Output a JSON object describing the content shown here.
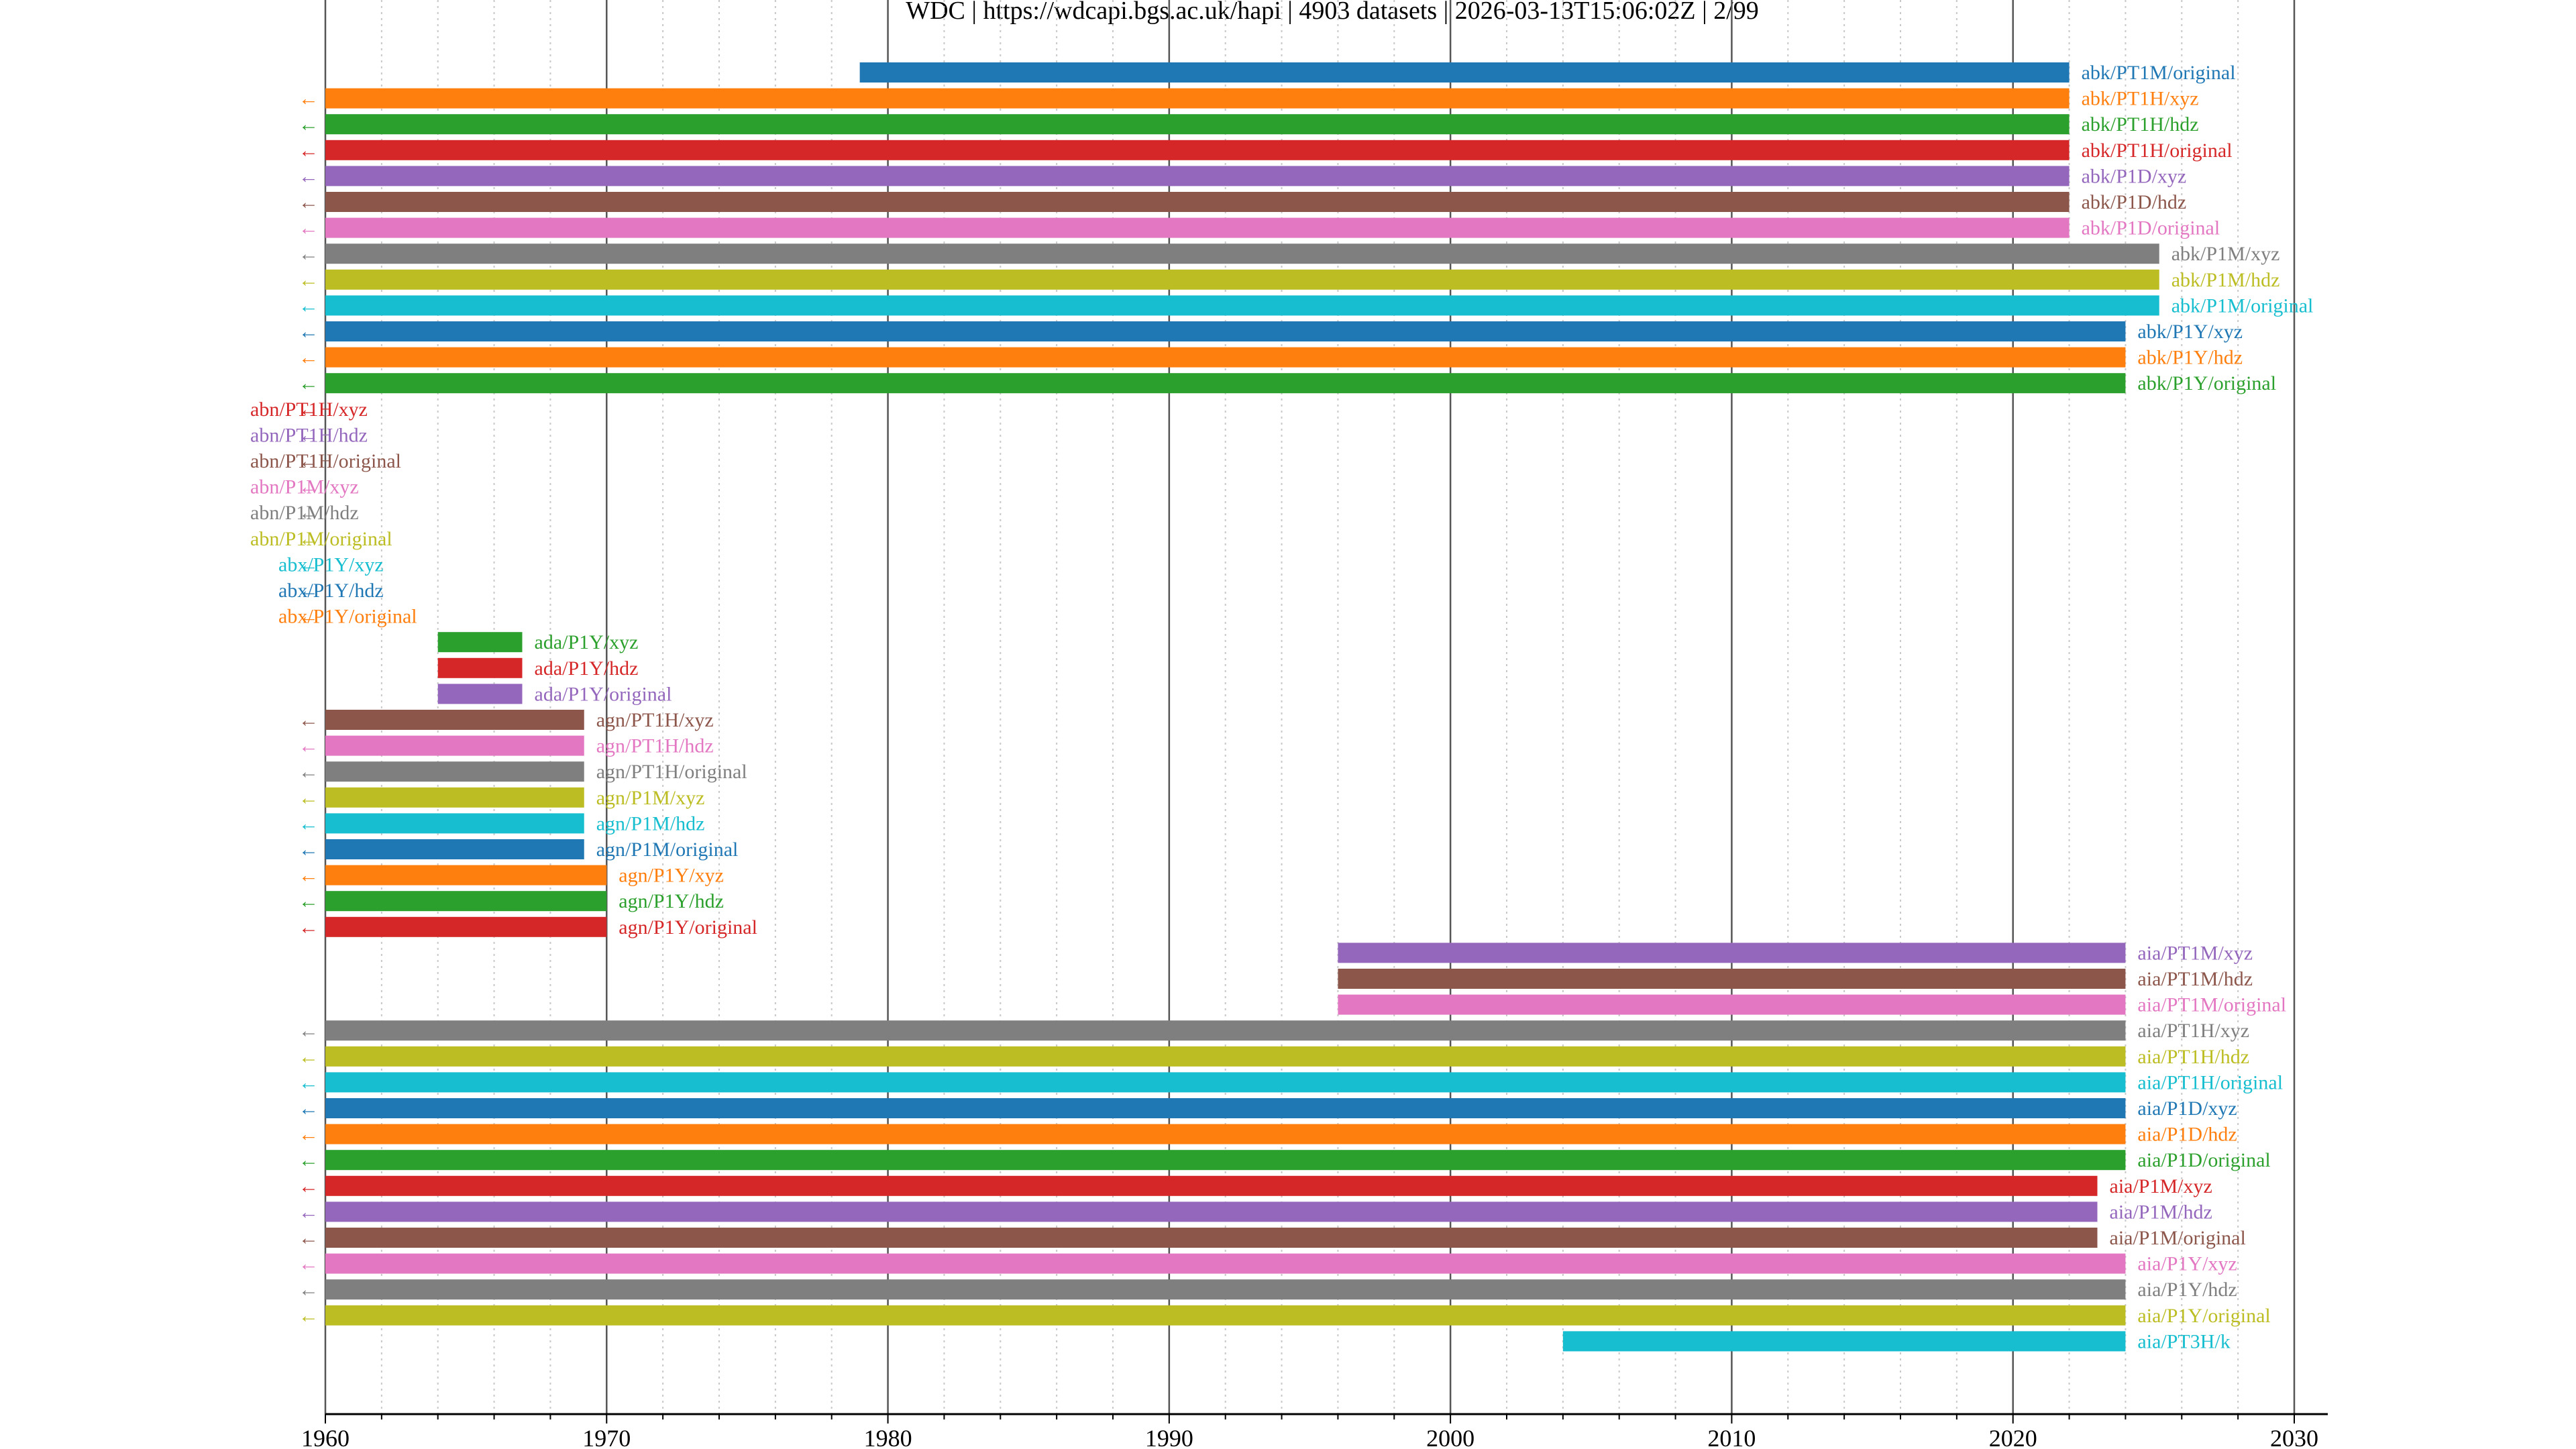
{
  "chart_data": {
    "type": "timeline",
    "title": "WDC | https://wdcapi.bgs.ac.uk/hapi | 4903 datasets | 2026-03-13T15:06:02Z | 2/99",
    "xlim": [
      1960,
      2030
    ],
    "x_ticks": [
      "1960",
      "1970",
      "1980",
      "1990",
      "2000",
      "2010",
      "2020",
      "2030"
    ],
    "truncated_start_marker": "←",
    "palette": [
      "#1f77b4",
      "#ff7f0e",
      "#2ca02c",
      "#d62728",
      "#9467bd",
      "#8c564b",
      "#e377c2",
      "#7f7f7f",
      "#bcbd22",
      "#17becf"
    ],
    "datasets": [
      {
        "label": "abk/PT1M/original",
        "start": 1979.0,
        "end": 2022.0,
        "truncated": false
      },
      {
        "label": "abk/PT1H/xyz",
        "start": 1960,
        "end": 2022.0,
        "truncated": true
      },
      {
        "label": "abk/PT1H/hdz",
        "start": 1960,
        "end": 2022.0,
        "truncated": true
      },
      {
        "label": "abk/PT1H/original",
        "start": 1960,
        "end": 2022.0,
        "truncated": true
      },
      {
        "label": "abk/P1D/xyz",
        "start": 1960,
        "end": 2022.0,
        "truncated": true
      },
      {
        "label": "abk/P1D/hdz",
        "start": 1960,
        "end": 2022.0,
        "truncated": true
      },
      {
        "label": "abk/P1D/original",
        "start": 1960,
        "end": 2022.0,
        "truncated": true
      },
      {
        "label": "abk/P1M/xyz",
        "start": 1960,
        "end": 2025.2,
        "truncated": true
      },
      {
        "label": "abk/P1M/hdz",
        "start": 1960,
        "end": 2025.2,
        "truncated": true
      },
      {
        "label": "abk/P1M/original",
        "start": 1960,
        "end": 2025.2,
        "truncated": true
      },
      {
        "label": "abk/P1Y/xyz",
        "start": 1960,
        "end": 2024.0,
        "truncated": true
      },
      {
        "label": "abk/P1Y/hdz",
        "start": 1960,
        "end": 2024.0,
        "truncated": true
      },
      {
        "label": "abk/P1Y/original",
        "start": 1960,
        "end": 2024.0,
        "truncated": true
      },
      {
        "label": "abn/PT1H/xyz",
        "start": 1960,
        "end": 1960,
        "truncated": true
      },
      {
        "label": "abn/PT1H/hdz",
        "start": 1960,
        "end": 1960,
        "truncated": true
      },
      {
        "label": "abn/PT1H/original",
        "start": 1960,
        "end": 1960,
        "truncated": true
      },
      {
        "label": "abn/P1M/xyz",
        "start": 1960,
        "end": 1960,
        "truncated": true
      },
      {
        "label": "abn/P1M/hdz",
        "start": 1960,
        "end": 1960,
        "truncated": true
      },
      {
        "label": "abn/P1M/original",
        "start": 1960,
        "end": 1960,
        "truncated": true
      },
      {
        "label": "abx/P1Y/xyz",
        "start": 1960,
        "end": 1960,
        "truncated": true
      },
      {
        "label": "abx/P1Y/hdz",
        "start": 1960,
        "end": 1960,
        "truncated": true
      },
      {
        "label": "abx/P1Y/original",
        "start": 1960,
        "end": 1960,
        "truncated": true
      },
      {
        "label": "ada/P1Y/xyz",
        "start": 1964.0,
        "end": 1967.0,
        "truncated": false
      },
      {
        "label": "ada/P1Y/hdz",
        "start": 1964.0,
        "end": 1967.0,
        "truncated": false
      },
      {
        "label": "ada/P1Y/original",
        "start": 1964.0,
        "end": 1967.0,
        "truncated": false
      },
      {
        "label": "agn/PT1H/xyz",
        "start": 1960,
        "end": 1969.2,
        "truncated": true
      },
      {
        "label": "agn/PT1H/hdz",
        "start": 1960,
        "end": 1969.2,
        "truncated": true
      },
      {
        "label": "agn/PT1H/original",
        "start": 1960,
        "end": 1969.2,
        "truncated": true
      },
      {
        "label": "agn/P1M/xyz",
        "start": 1960,
        "end": 1969.2,
        "truncated": true
      },
      {
        "label": "agn/P1M/hdz",
        "start": 1960,
        "end": 1969.2,
        "truncated": true
      },
      {
        "label": "agn/P1M/original",
        "start": 1960,
        "end": 1969.2,
        "truncated": true
      },
      {
        "label": "agn/P1Y/xyz",
        "start": 1960,
        "end": 1970.0,
        "truncated": true
      },
      {
        "label": "agn/P1Y/hdz",
        "start": 1960,
        "end": 1970.0,
        "truncated": true
      },
      {
        "label": "agn/P1Y/original",
        "start": 1960,
        "end": 1970.0,
        "truncated": true
      },
      {
        "label": "aia/PT1M/xyz",
        "start": 1996.0,
        "end": 2024.0,
        "truncated": false
      },
      {
        "label": "aia/PT1M/hdz",
        "start": 1996.0,
        "end": 2024.0,
        "truncated": false
      },
      {
        "label": "aia/PT1M/original",
        "start": 1996.0,
        "end": 2024.0,
        "truncated": false
      },
      {
        "label": "aia/PT1H/xyz",
        "start": 1960,
        "end": 2024.0,
        "truncated": true
      },
      {
        "label": "aia/PT1H/hdz",
        "start": 1960,
        "end": 2024.0,
        "truncated": true
      },
      {
        "label": "aia/PT1H/original",
        "start": 1960,
        "end": 2024.0,
        "truncated": true
      },
      {
        "label": "aia/P1D/xyz",
        "start": 1960,
        "end": 2024.0,
        "truncated": true
      },
      {
        "label": "aia/P1D/hdz",
        "start": 1960,
        "end": 2024.0,
        "truncated": true
      },
      {
        "label": "aia/P1D/original",
        "start": 1960,
        "end": 2024.0,
        "truncated": true
      },
      {
        "label": "aia/P1M/xyz",
        "start": 1960,
        "end": 2023.0,
        "truncated": true
      },
      {
        "label": "aia/P1M/hdz",
        "start": 1960,
        "end": 2023.0,
        "truncated": true
      },
      {
        "label": "aia/P1M/original",
        "start": 1960,
        "end": 2023.0,
        "truncated": true
      },
      {
        "label": "aia/P1Y/xyz",
        "start": 1960,
        "end": 2024.0,
        "truncated": true
      },
      {
        "label": "aia/P1Y/hdz",
        "start": 1960,
        "end": 2024.0,
        "truncated": true
      },
      {
        "label": "aia/P1Y/original",
        "start": 1960,
        "end": 2024.0,
        "truncated": true
      },
      {
        "label": "aia/PT3H/k",
        "start": 2004.0,
        "end": 2024.0,
        "truncated": false
      }
    ]
  }
}
